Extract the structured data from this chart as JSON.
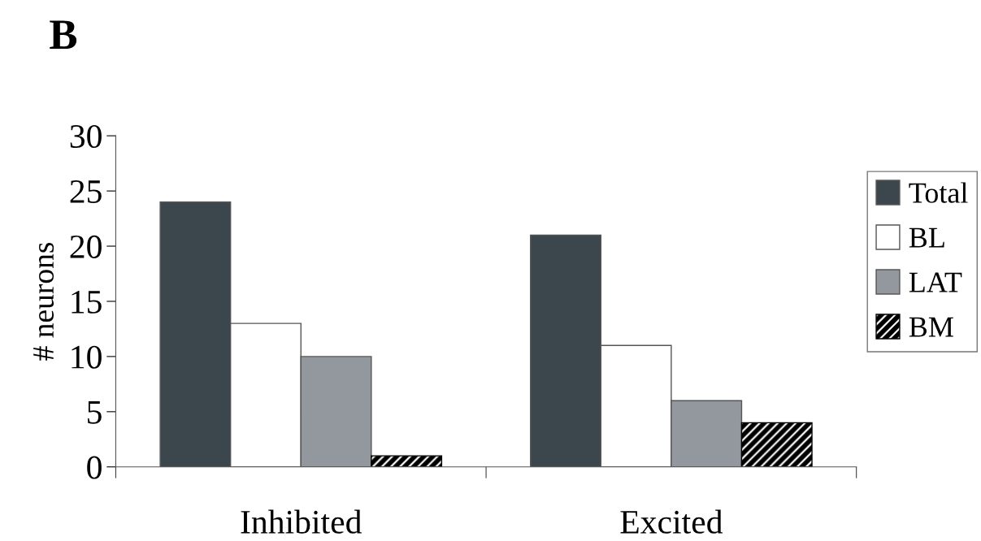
{
  "chart_data": {
    "type": "bar",
    "title": "B",
    "ylabel": "# neurons",
    "categories": [
      "Inhibited",
      "Excited"
    ],
    "series": [
      {
        "name": "Total",
        "color": "#3c464d",
        "values": [
          24,
          21
        ]
      },
      {
        "name": "BL",
        "color": "#ffffff",
        "values": [
          13,
          11
        ]
      },
      {
        "name": "LAT",
        "color": "#93989f",
        "values": [
          10,
          6
        ]
      },
      {
        "name": "BM",
        "color": "#000000",
        "values": [
          1,
          4
        ]
      }
    ],
    "ylim": [
      0,
      30
    ],
    "yticks": [
      0,
      5,
      10,
      15,
      20,
      25,
      30
    ],
    "grid": false,
    "legend": "right"
  }
}
